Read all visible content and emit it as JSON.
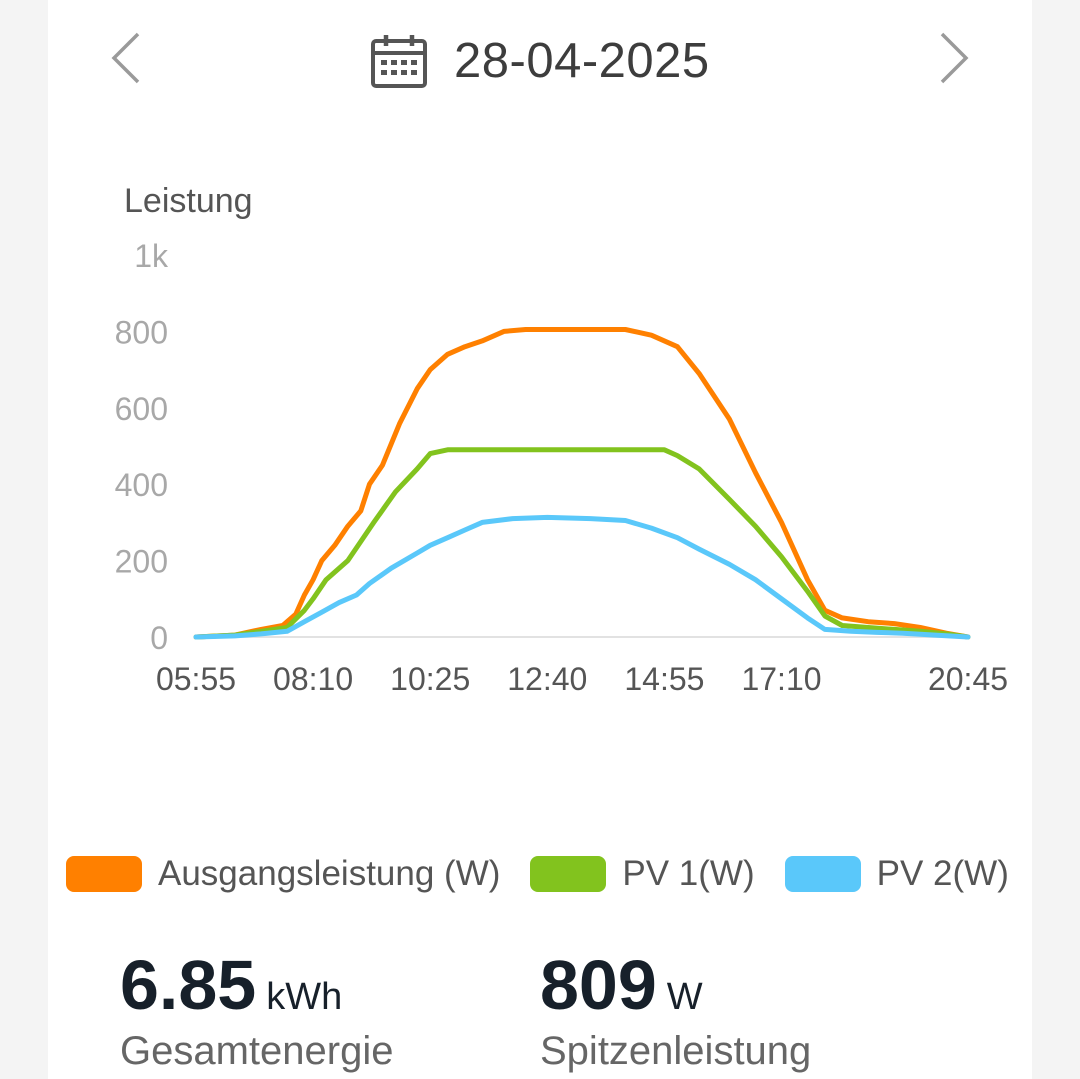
{
  "header": {
    "date": "28-04-2025",
    "prev_icon": "chevron-left-icon",
    "next_icon": "chevron-right-icon",
    "calendar_icon": "calendar-icon"
  },
  "chart_data": {
    "type": "line",
    "ylabel": "Leistung",
    "ylim": [
      0,
      1000
    ],
    "y_ticks": [
      "0",
      "200",
      "400",
      "600",
      "800",
      "1k"
    ],
    "y_tick_values": [
      0,
      200,
      400,
      600,
      800,
      1000
    ],
    "x_range": [
      "05:55",
      "20:45"
    ],
    "x_ticks": [
      "05:55",
      "08:10",
      "10:25",
      "12:40",
      "14:55",
      "17:10",
      "20:45"
    ],
    "grid": false,
    "series": [
      {
        "name": "Ausgangsleistung (W)",
        "color": "#ff8000",
        "points": [
          [
            "05:55",
            0
          ],
          [
            "06:40",
            5
          ],
          [
            "07:10",
            20
          ],
          [
            "07:35",
            30
          ],
          [
            "07:50",
            60
          ],
          [
            "08:00",
            110
          ],
          [
            "08:10",
            150
          ],
          [
            "08:20",
            200
          ],
          [
            "08:35",
            240
          ],
          [
            "08:50",
            290
          ],
          [
            "09:05",
            330
          ],
          [
            "09:15",
            400
          ],
          [
            "09:30",
            450
          ],
          [
            "09:50",
            560
          ],
          [
            "10:10",
            650
          ],
          [
            "10:25",
            700
          ],
          [
            "10:45",
            740
          ],
          [
            "11:05",
            760
          ],
          [
            "11:25",
            775
          ],
          [
            "11:50",
            800
          ],
          [
            "12:15",
            805
          ],
          [
            "12:40",
            805
          ],
          [
            "13:30",
            805
          ],
          [
            "14:10",
            805
          ],
          [
            "14:40",
            790
          ],
          [
            "15:10",
            760
          ],
          [
            "15:35",
            690
          ],
          [
            "16:10",
            570
          ],
          [
            "16:40",
            430
          ],
          [
            "17:10",
            300
          ],
          [
            "17:40",
            150
          ],
          [
            "18:00",
            70
          ],
          [
            "18:20",
            50
          ],
          [
            "18:50",
            40
          ],
          [
            "19:20",
            35
          ],
          [
            "19:50",
            25
          ],
          [
            "20:20",
            10
          ],
          [
            "20:45",
            0
          ]
        ]
      },
      {
        "name": "PV 1(W)",
        "color": "#82c31e",
        "points": [
          [
            "05:55",
            0
          ],
          [
            "06:40",
            5
          ],
          [
            "07:10",
            15
          ],
          [
            "07:40",
            25
          ],
          [
            "08:00",
            70
          ],
          [
            "08:10",
            100
          ],
          [
            "08:25",
            150
          ],
          [
            "08:50",
            200
          ],
          [
            "09:05",
            250
          ],
          [
            "09:20",
            300
          ],
          [
            "09:45",
            380
          ],
          [
            "10:10",
            440
          ],
          [
            "10:25",
            480
          ],
          [
            "10:45",
            490
          ],
          [
            "11:30",
            490
          ],
          [
            "12:40",
            490
          ],
          [
            "13:30",
            490
          ],
          [
            "14:55",
            490
          ],
          [
            "15:10",
            475
          ],
          [
            "15:35",
            440
          ],
          [
            "16:10",
            360
          ],
          [
            "16:40",
            290
          ],
          [
            "17:10",
            210
          ],
          [
            "17:40",
            120
          ],
          [
            "18:00",
            55
          ],
          [
            "18:20",
            30
          ],
          [
            "18:50",
            25
          ],
          [
            "19:20",
            20
          ],
          [
            "19:50",
            15
          ],
          [
            "20:20",
            8
          ],
          [
            "20:45",
            0
          ]
        ]
      },
      {
        "name": "PV 2(W)",
        "color": "#5ac8fa",
        "points": [
          [
            "05:55",
            0
          ],
          [
            "06:40",
            3
          ],
          [
            "07:10",
            8
          ],
          [
            "07:40",
            15
          ],
          [
            "08:00",
            40
          ],
          [
            "08:20",
            65
          ],
          [
            "08:40",
            90
          ],
          [
            "09:00",
            110
          ],
          [
            "09:15",
            140
          ],
          [
            "09:40",
            180
          ],
          [
            "10:10",
            220
          ],
          [
            "10:25",
            240
          ],
          [
            "10:45",
            260
          ],
          [
            "11:05",
            280
          ],
          [
            "11:25",
            300
          ],
          [
            "12:00",
            310
          ],
          [
            "12:40",
            313
          ],
          [
            "13:30",
            310
          ],
          [
            "14:10",
            305
          ],
          [
            "14:40",
            285
          ],
          [
            "15:10",
            260
          ],
          [
            "15:35",
            230
          ],
          [
            "16:10",
            190
          ],
          [
            "16:40",
            150
          ],
          [
            "17:10",
            100
          ],
          [
            "17:40",
            50
          ],
          [
            "18:00",
            20
          ],
          [
            "18:30",
            15
          ],
          [
            "19:00",
            12
          ],
          [
            "19:30",
            10
          ],
          [
            "20:00",
            6
          ],
          [
            "20:45",
            0
          ]
        ]
      }
    ]
  },
  "legend": [
    {
      "label": "Ausgangsleistung (W)",
      "color": "#ff8000"
    },
    {
      "label": "PV 1(W)",
      "color": "#82c31e"
    },
    {
      "label": "PV 2(W)",
      "color": "#5ac8fa"
    }
  ],
  "stats": {
    "energy": {
      "value": "6.85",
      "unit": "kWh",
      "caption": "Gesamtenergie"
    },
    "peak": {
      "value": "809",
      "unit": "W",
      "caption": "Spitzenleistung"
    }
  }
}
